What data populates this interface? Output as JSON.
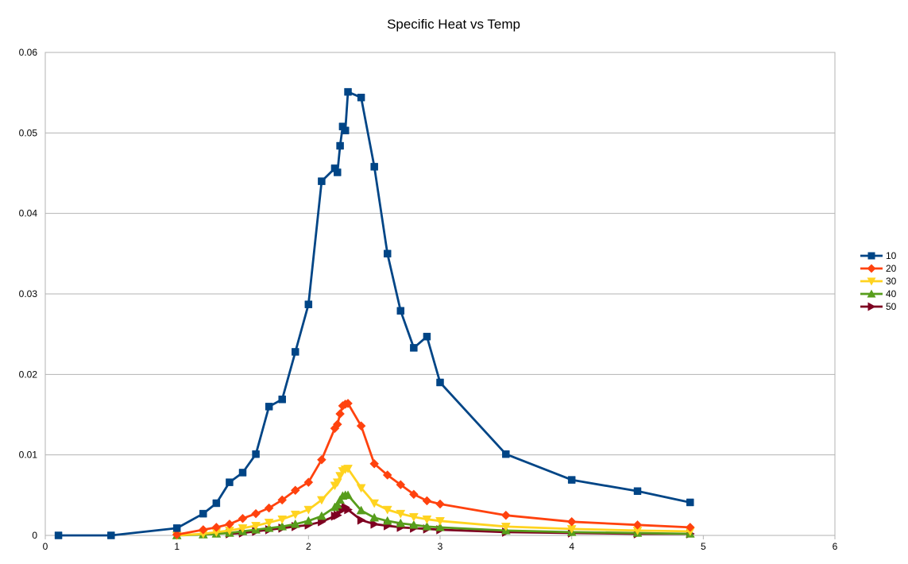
{
  "chart_data": {
    "type": "line",
    "title": "Specific Heat vs Temp",
    "xlabel": "",
    "ylabel": "",
    "xlim": [
      0,
      6
    ],
    "ylim": [
      0,
      0.06
    ],
    "xticks": [
      "0",
      "1",
      "2",
      "3",
      "4",
      "5",
      "6"
    ],
    "yticks": [
      "0",
      "0.01",
      "0.02",
      "0.03",
      "0.04",
      "0.05",
      "0.06"
    ],
    "grid": true,
    "legend_position": "right",
    "series": [
      {
        "name": "10",
        "color": "#004586",
        "marker": "square",
        "x": [
          0.1,
          0.5,
          1.0,
          1.2,
          1.3,
          1.4,
          1.5,
          1.6,
          1.7,
          1.8,
          1.9,
          2.0,
          2.1,
          2.2,
          2.22,
          2.24,
          2.26,
          2.28,
          2.3,
          2.4,
          2.5,
          2.6,
          2.7,
          2.8,
          2.9,
          3.0,
          3.5,
          4.0,
          4.5,
          4.9
        ],
        "y": [
          0.0,
          0.0,
          0.0009,
          0.0027,
          0.004,
          0.0066,
          0.0078,
          0.0101,
          0.016,
          0.0169,
          0.0228,
          0.0287,
          0.044,
          0.0456,
          0.0451,
          0.0484,
          0.0508,
          0.0503,
          0.0551,
          0.0544,
          0.0458,
          0.035,
          0.0279,
          0.0233,
          0.0247,
          0.019,
          0.0101,
          0.0069,
          0.0055,
          0.0041
        ]
      },
      {
        "name": "20",
        "color": "#ff420e",
        "marker": "diamond",
        "x": [
          1.0,
          1.2,
          1.3,
          1.4,
          1.5,
          1.6,
          1.7,
          1.8,
          1.9,
          2.0,
          2.1,
          2.2,
          2.22,
          2.24,
          2.26,
          2.28,
          2.3,
          2.4,
          2.5,
          2.6,
          2.7,
          2.8,
          2.9,
          3.0,
          3.5,
          4.0,
          4.5,
          4.9
        ],
        "y": [
          0.0001,
          0.0007,
          0.001,
          0.0014,
          0.0021,
          0.0027,
          0.0034,
          0.0044,
          0.0056,
          0.0066,
          0.0094,
          0.0133,
          0.0138,
          0.0151,
          0.0161,
          0.0163,
          0.0164,
          0.0136,
          0.0089,
          0.0075,
          0.0063,
          0.0051,
          0.0043,
          0.0039,
          0.0025,
          0.0017,
          0.0013,
          0.001
        ]
      },
      {
        "name": "30",
        "color": "#ffd320",
        "marker": "triangle-down",
        "x": [
          1.0,
          1.2,
          1.3,
          1.4,
          1.5,
          1.6,
          1.7,
          1.8,
          1.9,
          2.0,
          2.1,
          2.2,
          2.22,
          2.24,
          2.26,
          2.28,
          2.3,
          2.4,
          2.5,
          2.6,
          2.7,
          2.8,
          2.9,
          3.0,
          3.5,
          4.0,
          4.5,
          4.9
        ],
        "y": [
          0.0,
          0.0002,
          0.0004,
          0.0006,
          0.0009,
          0.0012,
          0.0016,
          0.002,
          0.0026,
          0.0032,
          0.0044,
          0.0062,
          0.0066,
          0.0074,
          0.008,
          0.0082,
          0.0083,
          0.0059,
          0.004,
          0.0032,
          0.0027,
          0.0023,
          0.002,
          0.0018,
          0.0011,
          0.0008,
          0.0006,
          0.0005
        ]
      },
      {
        "name": "40",
        "color": "#579d1c",
        "marker": "triangle-up",
        "x": [
          1.0,
          1.2,
          1.3,
          1.4,
          1.5,
          1.6,
          1.7,
          1.8,
          1.9,
          2.0,
          2.1,
          2.2,
          2.22,
          2.24,
          2.26,
          2.28,
          2.3,
          2.4,
          2.5,
          2.6,
          2.7,
          2.8,
          2.9,
          3.0,
          3.5,
          4.0,
          4.5,
          4.9
        ],
        "y": [
          0.0,
          0.0001,
          0.0002,
          0.0003,
          0.0005,
          0.0007,
          0.0009,
          0.0011,
          0.0014,
          0.0018,
          0.0024,
          0.0035,
          0.0038,
          0.0044,
          0.0049,
          0.005,
          0.005,
          0.0031,
          0.0022,
          0.0018,
          0.0015,
          0.0013,
          0.0011,
          0.001,
          0.0006,
          0.0004,
          0.0003,
          0.0002
        ]
      },
      {
        "name": "50",
        "color": "#7e0021",
        "marker": "triangle-right",
        "x": [
          1.4,
          1.5,
          1.6,
          1.7,
          1.8,
          1.9,
          2.0,
          2.1,
          2.2,
          2.22,
          2.24,
          2.26,
          2.28,
          2.3,
          2.4,
          2.5,
          2.6,
          2.7,
          2.8,
          2.9,
          3.0,
          3.5,
          4.0,
          4.5,
          4.9
        ],
        "y": [
          0.0002,
          0.0003,
          0.0005,
          0.0007,
          0.0009,
          0.0011,
          0.0013,
          0.0017,
          0.0024,
          0.0025,
          0.003,
          0.0033,
          0.0035,
          0.0032,
          0.0019,
          0.0014,
          0.0012,
          0.001,
          0.0009,
          0.0008,
          0.0007,
          0.0004,
          0.0003,
          0.0002,
          0.0002
        ]
      }
    ]
  }
}
